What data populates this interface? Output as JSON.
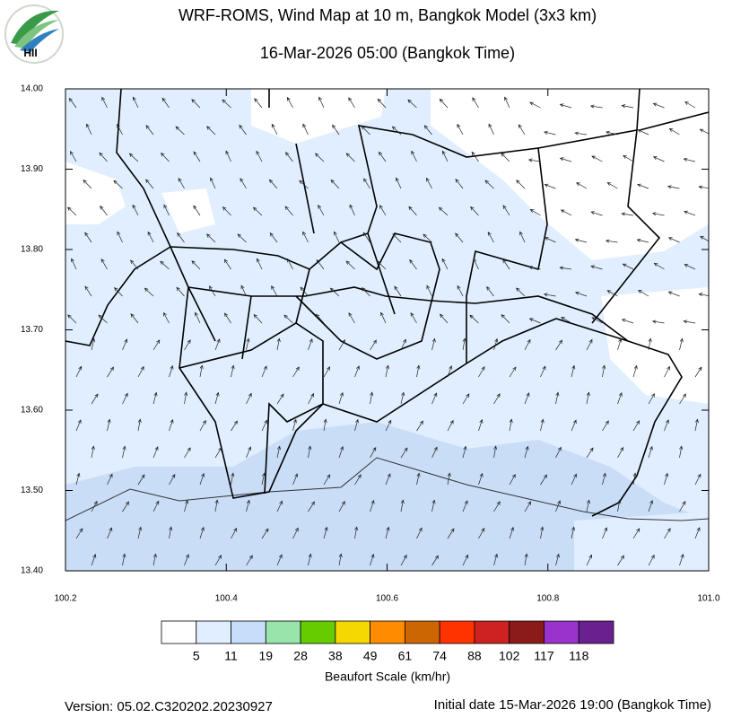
{
  "header": {
    "title": "WRF-ROMS, Wind Map at 10 m, Bangkok Model (3x3 km)",
    "subtitle": "16-Mar-2026 05:00 (Bangkok Time)",
    "logo_text": "HII"
  },
  "map": {
    "xlim": [
      100.2,
      101.0
    ],
    "ylim": [
      13.4,
      14.0
    ],
    "xticks": [
      100.2,
      100.4,
      100.6,
      100.8,
      {
        "value": 101,
        "label": "101.0"
      }
    ],
    "yticks": [
      {
        "value": 14,
        "label": "14.00"
      },
      {
        "value": 13.9,
        "label": "13.90"
      },
      {
        "value": 13.8,
        "label": "13.80"
      },
      {
        "value": 13.7,
        "label": "13.70"
      },
      {
        "value": 13.6,
        "label": "13.60"
      },
      {
        "value": 13.5,
        "label": "13.50"
      },
      {
        "value": 13.4,
        "label": "13.40"
      }
    ]
  },
  "colorbar": {
    "colors": [
      "#ffffff",
      "#e0eeff",
      "#c6defa",
      "#98e4aa",
      "#66cc00",
      "#f5d800",
      "#ff8c00",
      "#cc6600",
      "#ff3300",
      "#cc2222",
      "#8b1a1a",
      "#9933cc",
      "#6b2090"
    ],
    "labels": [
      5,
      11,
      19,
      28,
      38,
      49,
      61,
      74,
      88,
      102,
      117,
      118
    ],
    "title": "Beaufort Scale (km/hr)"
  },
  "footer": {
    "version": "Version: 05.02.C320202.20230927",
    "initial": "Initial date 15-Mar-2026 19:00 (Bangkok Time)"
  }
}
